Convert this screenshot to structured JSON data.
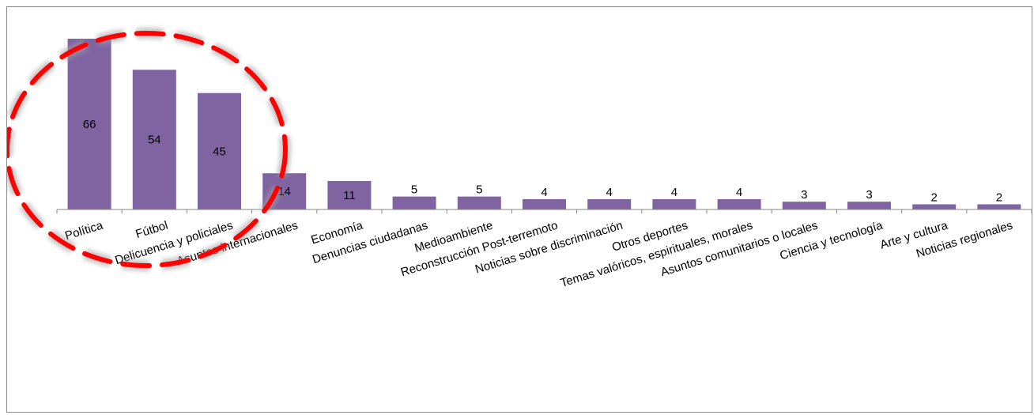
{
  "chart_data": {
    "type": "bar",
    "categories": [
      "Política",
      "Fútbol",
      "Delicuencia y policiales",
      "Asuntos internacionales",
      "Economía",
      "Denuncias ciudadanas",
      "Medioambiente",
      "Reconstrucción Post-terremoto",
      "Noticias sobre discriminación",
      "Otros deportes",
      "Temas valóricos, espirituales, morales",
      "Asuntos comunitarios o locales",
      "Ciencia y tecnología",
      "Arte y cultura",
      "Noticias regionales"
    ],
    "values": [
      66,
      54,
      45,
      14,
      11,
      5,
      5,
      4,
      4,
      4,
      4,
      3,
      3,
      2,
      2
    ],
    "ylim": [
      0,
      66
    ],
    "grid": false,
    "legend": "none",
    "bar_color": "#8064a2",
    "annotation": {
      "type": "dashed-ellipse",
      "color": "#ff0000",
      "highlights": [
        "Política",
        "Fútbol",
        "Delicuencia y policiales"
      ]
    }
  }
}
